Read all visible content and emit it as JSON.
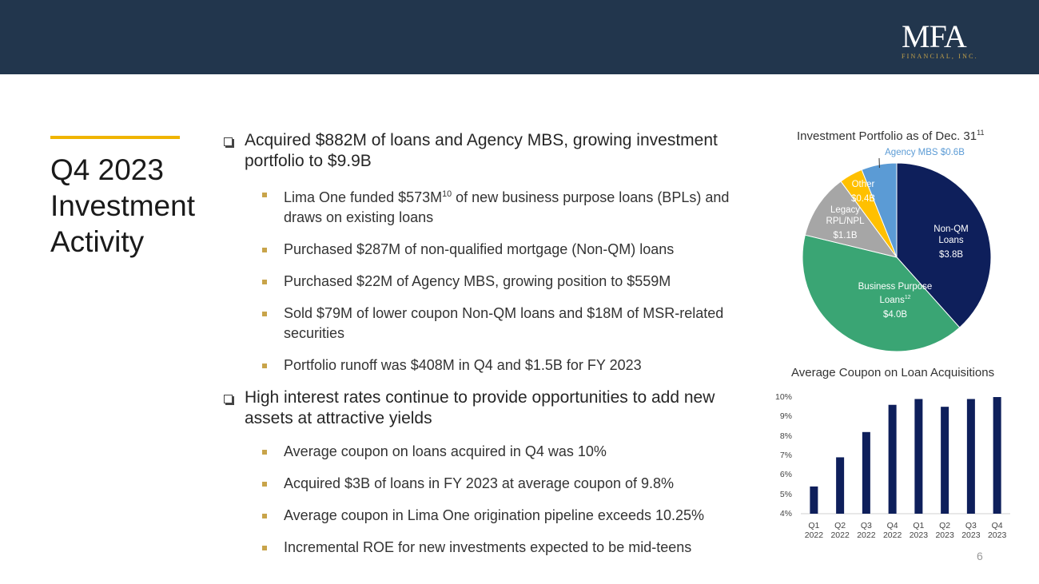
{
  "header": {
    "logo": "MFA",
    "logo_subtitle": "FINANCIAL, INC."
  },
  "title": "Q4 2023 Investment Activity",
  "bullets": [
    {
      "text": "Acquired $882M of loans and Agency MBS, growing investment portfolio to $9.9B",
      "items": [
        {
          "text": "Lima One funded $573M",
          "note": "10",
          "text_after": " of new business purpose loans (BPLs) and draws on existing loans"
        },
        "Purchased $287M of non-qualified mortgage (Non-QM) loans",
        "Purchased $22M of Agency MBS, growing position to $559M",
        "Sold $79M of lower coupon Non-QM loans and $18M of MSR-related securities",
        "Portfolio runoff was $408M in Q4 and $1.5B for FY 2023"
      ]
    },
    {
      "text": "High interest rates continue to provide opportunities to add new assets at attractive yields",
      "items": [
        "Average coupon on loans acquired in Q4 was 10%",
        "Acquired $3B of loans in FY 2023 at average coupon of 9.8%",
        "Average coupon in Lima One origination pipeline exceeds 10.25%",
        "Incremental ROE for new investments expected to be mid-teens"
      ]
    }
  ],
  "page_number": "6",
  "chart_data": [
    {
      "type": "pie",
      "title": "Investment Portfolio as of Dec. 31",
      "title_note": "11",
      "categories": [
        "Non-QM Loans",
        "Business Purpose Loans",
        "Legacy RPL/NPL",
        "Other",
        "Agency MBS"
      ],
      "category_notes": [
        null,
        "12",
        null,
        null,
        null
      ],
      "values": [
        3.8,
        4.0,
        1.1,
        0.4,
        0.6
      ],
      "value_labels": [
        "$3.8B",
        "$4.0B",
        "$1.1B",
        "$0.4B",
        "$0.6B"
      ],
      "colors": [
        "#0e1f5b",
        "#3aa574",
        "#a6a6a6",
        "#ffc000",
        "#5b9bd5"
      ]
    },
    {
      "type": "bar",
      "title": "Average Coupon on Loan Acquisitions",
      "categories": [
        "Q1 2022",
        "Q2 2022",
        "Q3 2022",
        "Q4 2022",
        "Q1 2023",
        "Q2 2023",
        "Q3 2023",
        "Q4 2023"
      ],
      "values": [
        5.4,
        6.9,
        8.2,
        9.6,
        9.9,
        9.5,
        9.9,
        10.0
      ],
      "color": "#0e1f5b",
      "ylim": [
        4,
        10
      ],
      "yticks": [
        {
          "value": 4,
          "label": "4%"
        },
        {
          "value": 5,
          "label": "5%"
        },
        {
          "value": 6,
          "label": "6%"
        },
        {
          "value": 7,
          "label": "7%"
        },
        {
          "value": 8,
          "label": "8%"
        },
        {
          "value": 9,
          "label": "9%"
        },
        {
          "value": 10,
          "label": "10%"
        }
      ]
    }
  ]
}
